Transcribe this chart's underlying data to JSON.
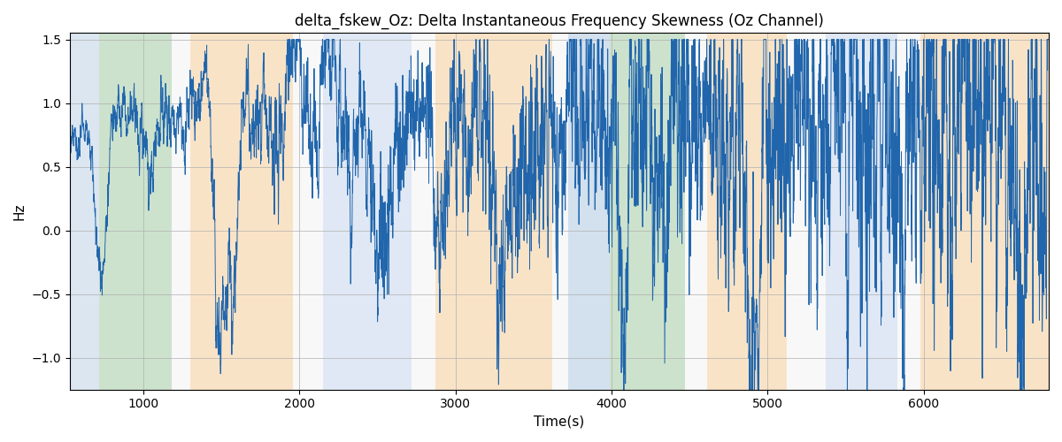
{
  "title": "delta_fskew_Oz: Delta Instantaneous Frequency Skewness (Oz Channel)",
  "xlabel": "Time(s)",
  "ylabel": "Hz",
  "xlim": [
    530,
    6800
  ],
  "ylim": [
    -1.25,
    1.55
  ],
  "line_color": "#2166ac",
  "line_width": 0.7,
  "background_color": "#ffffff",
  "grid_color": "#b0b0b0",
  "colored_bands": [
    {
      "xmin": 530,
      "xmax": 720,
      "color": "#b0c8e0",
      "alpha": 0.45
    },
    {
      "xmin": 720,
      "xmax": 1180,
      "color": "#90c090",
      "alpha": 0.45
    },
    {
      "xmin": 1180,
      "xmax": 1300,
      "color": "#e8e8e8",
      "alpha": 0.3
    },
    {
      "xmin": 1300,
      "xmax": 1960,
      "color": "#f5c890",
      "alpha": 0.5
    },
    {
      "xmin": 1960,
      "xmax": 2150,
      "color": "#e8e8e8",
      "alpha": 0.3
    },
    {
      "xmin": 2150,
      "xmax": 2720,
      "color": "#b8cce8",
      "alpha": 0.45
    },
    {
      "xmin": 2720,
      "xmax": 2870,
      "color": "#e8e8e8",
      "alpha": 0.3
    },
    {
      "xmin": 2870,
      "xmax": 3620,
      "color": "#f5c890",
      "alpha": 0.5
    },
    {
      "xmin": 3620,
      "xmax": 3720,
      "color": "#e8e8e8",
      "alpha": 0.3
    },
    {
      "xmin": 3720,
      "xmax": 3990,
      "color": "#b0c8e0",
      "alpha": 0.55
    },
    {
      "xmin": 3990,
      "xmax": 4470,
      "color": "#90c090",
      "alpha": 0.45
    },
    {
      "xmin": 4470,
      "xmax": 4610,
      "color": "#e8e8e8",
      "alpha": 0.3
    },
    {
      "xmin": 4610,
      "xmax": 5120,
      "color": "#f5c890",
      "alpha": 0.5
    },
    {
      "xmin": 5120,
      "xmax": 5370,
      "color": "#e8e8e8",
      "alpha": 0.3
    },
    {
      "xmin": 5370,
      "xmax": 5830,
      "color": "#b8cce8",
      "alpha": 0.45
    },
    {
      "xmin": 5830,
      "xmax": 5980,
      "color": "#e8e8e8",
      "alpha": 0.3
    },
    {
      "xmin": 5980,
      "xmax": 6800,
      "color": "#f5c890",
      "alpha": 0.5
    }
  ],
  "yticks": [
    -1.0,
    -0.5,
    0.0,
    0.5,
    1.0,
    1.5
  ],
  "xticks": [
    1000,
    2000,
    3000,
    4000,
    5000,
    6000
  ],
  "seed": 42,
  "x_start": 530,
  "x_end": 6800,
  "n_points": 6300
}
